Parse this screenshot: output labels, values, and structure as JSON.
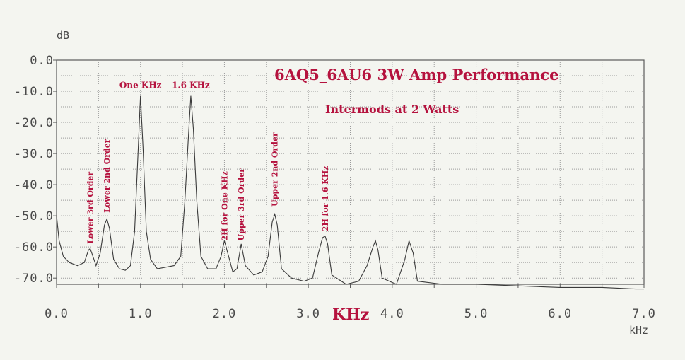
{
  "chart_data": {
    "type": "line",
    "title": "6AQ5_6AU6 3W Amp Performance",
    "subtitle": "Intermods at 2 Watts",
    "xlabel": "KHz",
    "x_unit": "kHz",
    "y_unit": "dB",
    "xlim": [
      0.0,
      7.0
    ],
    "ylim": [
      -72.0,
      0.0
    ],
    "grid": true,
    "x_ticks": [
      "0.0",
      "1.0",
      "2.0",
      "3.0",
      "4.0",
      "5.0",
      "6.0",
      "7.0"
    ],
    "y_ticks": [
      "0.0",
      "-10.0",
      "-20.0",
      "-30.0",
      "-40.0",
      "-50.0",
      "-60.0",
      "-70.0"
    ],
    "series": [
      {
        "x": [
          0.0,
          0.03,
          0.08,
          0.15,
          0.25,
          0.33,
          0.38,
          0.4,
          0.42,
          0.47,
          0.52,
          0.57,
          0.6,
          0.63,
          0.68,
          0.75,
          0.82,
          0.88,
          0.93,
          0.97,
          1.0,
          1.03,
          1.07,
          1.12,
          1.2,
          1.3,
          1.4,
          1.48,
          1.53,
          1.57,
          1.6,
          1.63,
          1.67,
          1.72,
          1.8,
          1.9,
          1.96,
          2.0,
          2.04,
          2.1,
          2.15,
          2.2,
          2.25,
          2.35,
          2.45,
          2.52,
          2.57,
          2.6,
          2.63,
          2.68,
          2.8,
          2.95,
          3.05,
          3.12,
          3.17,
          3.2,
          3.23,
          3.28,
          3.45,
          3.6,
          3.7,
          3.77,
          3.8,
          3.83,
          3.88,
          4.05,
          4.15,
          4.2,
          4.25,
          4.3,
          4.6,
          5.0,
          5.5,
          6.0,
          6.5,
          6.9,
          7.0
        ],
        "y": [
          -50.0,
          -58.0,
          -63.0,
          -65.0,
          -66.0,
          -65.0,
          -61.0,
          -60.5,
          -62.0,
          -66.0,
          -62.0,
          -53.0,
          -51.0,
          -54.0,
          -64.0,
          -67.0,
          -67.5,
          -66.0,
          -55.0,
          -30.0,
          -11.5,
          -28.0,
          -55.0,
          -64.0,
          -67.0,
          -66.5,
          -66.0,
          -63.0,
          -45.0,
          -25.0,
          -11.5,
          -22.0,
          -45.0,
          -63.0,
          -67.0,
          -67.0,
          -63.0,
          -58.0,
          -62.0,
          -68.0,
          -67.0,
          -59.0,
          -66.0,
          -69.0,
          -68.0,
          -63.0,
          -52.0,
          -49.5,
          -53.0,
          -67.0,
          -70.0,
          -71.0,
          -70.0,
          -62.0,
          -57.0,
          -56.5,
          -59.0,
          -69.0,
          -72.0,
          -71.0,
          -66.0,
          -60.0,
          -58.0,
          -61.0,
          -70.0,
          -72.0,
          -64.0,
          -58.0,
          -62.0,
          -71.0,
          -72.0,
          -72.0,
          -72.5,
          -73.0,
          -73.0,
          -73.5,
          -73.5
        ]
      }
    ],
    "annotations": [
      {
        "text": "One KHz",
        "x": 1.0,
        "y": -9.0
      },
      {
        "text": "1.6 KHz",
        "x": 1.6,
        "y": -9.0
      },
      {
        "text": "Lower 3rd Order",
        "x": 0.4,
        "y": -59.0,
        "rotated": true
      },
      {
        "text": "Lower 2nd Order",
        "x": 0.6,
        "y": -49.0,
        "rotated": true
      },
      {
        "text": "2H for One KHz",
        "x": 2.0,
        "y": -58.0,
        "rotated": true
      },
      {
        "text": "Upper 3rd Order",
        "x": 2.2,
        "y": -58.0,
        "rotated": true
      },
      {
        "text": "Upper 2nd Order",
        "x": 2.6,
        "y": -47.0,
        "rotated": true
      },
      {
        "text": "2H for 1.6 KHz",
        "x": 3.2,
        "y": -55.0,
        "rotated": true
      }
    ]
  }
}
